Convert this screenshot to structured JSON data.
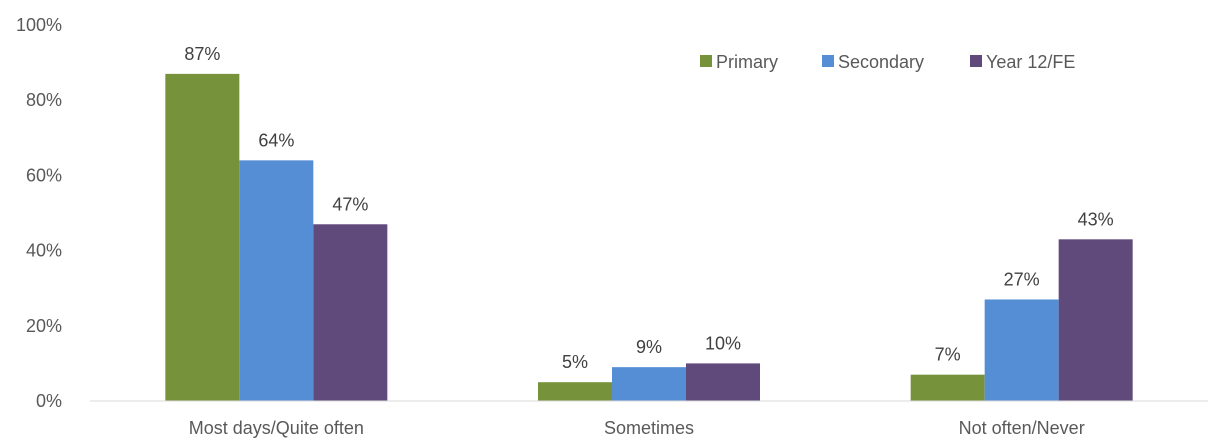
{
  "chart_data": {
    "type": "bar",
    "categories": [
      "Most days/Quite often",
      "Sometimes",
      "Not often/Never"
    ],
    "series": [
      {
        "name": "Primary",
        "values": [
          87,
          5,
          7
        ],
        "color": "#76933c"
      },
      {
        "name": "Secondary",
        "values": [
          64,
          9,
          27
        ],
        "color": "#558ed5"
      },
      {
        "name": "Year 12/FE",
        "values": [
          47,
          10,
          43
        ],
        "color": "#604a7b"
      }
    ],
    "value_labels": [
      [
        "87%",
        "5%",
        "7%"
      ],
      [
        "64%",
        "9%",
        "27%"
      ],
      [
        "47%",
        "10%",
        "43%"
      ]
    ],
    "y_ticks": [
      "0%",
      "20%",
      "40%",
      "60%",
      "80%",
      "100%"
    ],
    "ylim": [
      0,
      100
    ],
    "legend_position": "top-right",
    "grid": false,
    "axis_color": "#d9d9d9"
  }
}
